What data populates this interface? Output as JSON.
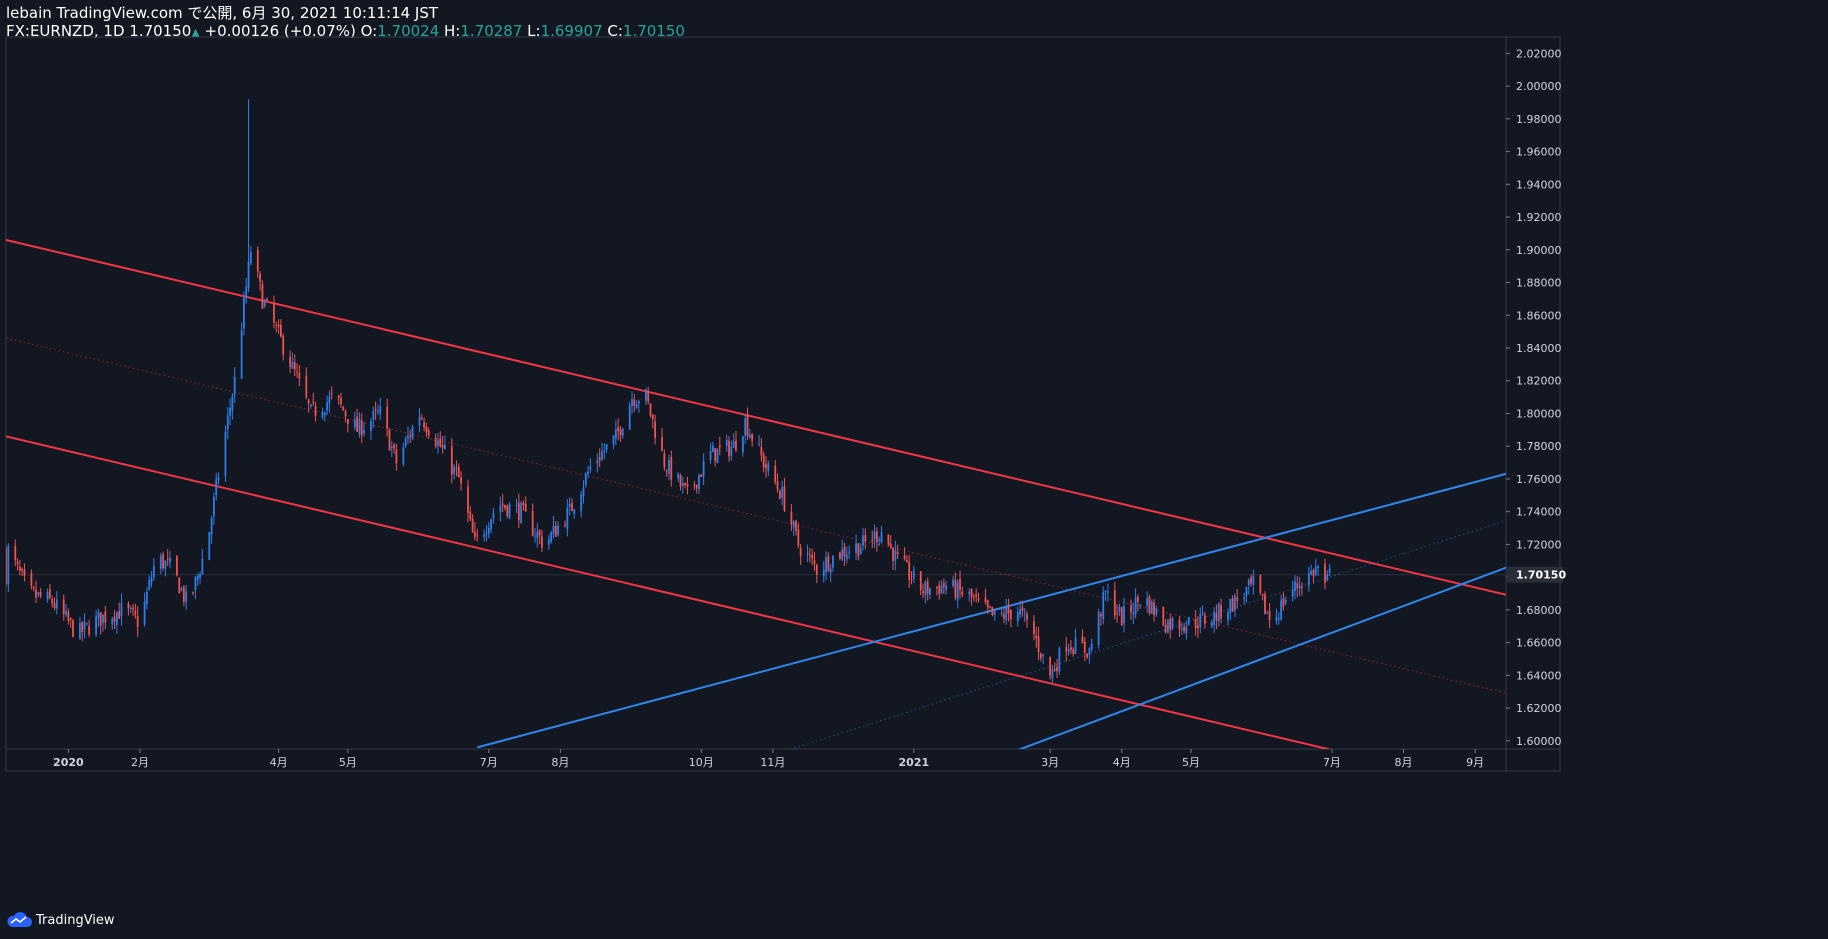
{
  "header": {
    "published": "lebain TradingView.com で公開, 6月 30, 2021 10:11:14 JST",
    "symbol_line": "FX:EURNZD, 1D 1.70150",
    "change_arrow": "▲",
    "change": " +0.00126 (+0.07%)",
    "o_label": " O:",
    "o_value": "1.70024",
    "h_label": " H:",
    "h_value": "1.70287",
    "l_label": " L:",
    "l_value": "1.69907",
    "c_label": " C:",
    "c_value": "1.70150"
  },
  "footer": {
    "brand": "TradingView",
    "logo_icon": "tradingview-cloud-icon"
  },
  "colors": {
    "background": "#131722",
    "up": "#2962ff",
    "up_candle": "#2f7ee8",
    "down": "#ef5350",
    "channel_red": "#f23645",
    "channel_blue": "#2f86eb",
    "value_green": "#26a69a"
  },
  "chart_data": {
    "type": "candlestick",
    "symbol": "FX:EURNZD",
    "interval": "1D",
    "last_price": 1.7015,
    "last_price_label": "1.70150",
    "ylim": [
      1.595,
      2.03
    ],
    "y_ticks": [
      "2.02000",
      "2.00000",
      "1.98000",
      "1.96000",
      "1.94000",
      "1.92000",
      "1.90000",
      "1.88000",
      "1.86000",
      "1.84000",
      "1.82000",
      "1.80000",
      "1.78000",
      "1.76000",
      "1.74000",
      "1.72000",
      "1.70000",
      "1.68000",
      "1.66000",
      "1.64000",
      "1.62000",
      "1.60000"
    ],
    "x_ticks": [
      "2020",
      "2月",
      "4月",
      "5月",
      "7月",
      "8月",
      "10月",
      "11月",
      "2021",
      "3月",
      "4月",
      "5月",
      "7月",
      "8月",
      "9月"
    ],
    "price_path": [
      [
        "2019-12-06",
        1.716
      ],
      [
        "2019-12-15",
        1.69
      ],
      [
        "2019-12-25",
        1.685
      ],
      [
        "2020-01-05",
        1.665
      ],
      [
        "2020-01-15",
        1.675
      ],
      [
        "2020-01-25",
        1.68
      ],
      [
        "2020-02-01",
        1.672
      ],
      [
        "2020-02-08",
        1.712
      ],
      [
        "2020-02-15",
        1.705
      ],
      [
        "2020-02-22",
        1.682
      ],
      [
        "2020-03-01",
        1.72
      ],
      [
        "2020-03-08",
        1.78
      ],
      [
        "2020-03-13",
        1.82
      ],
      [
        "2020-03-20",
        1.9
      ],
      [
        "2020-03-25",
        1.87
      ],
      [
        "2020-04-05",
        1.835
      ],
      [
        "2020-04-15",
        1.8
      ],
      [
        "2020-04-25",
        1.81
      ],
      [
        "2020-05-05",
        1.79
      ],
      [
        "2020-05-15",
        1.8
      ],
      [
        "2020-05-22",
        1.77
      ],
      [
        "2020-06-01",
        1.8
      ],
      [
        "2020-06-10",
        1.78
      ],
      [
        "2020-06-18",
        1.76
      ],
      [
        "2020-06-25",
        1.72
      ],
      [
        "2020-07-05",
        1.745
      ],
      [
        "2020-07-15",
        1.74
      ],
      [
        "2020-07-25",
        1.72
      ],
      [
        "2020-08-05",
        1.74
      ],
      [
        "2020-08-15",
        1.77
      ],
      [
        "2020-08-25",
        1.785
      ],
      [
        "2020-09-01",
        1.81
      ],
      [
        "2020-09-07",
        1.81
      ],
      [
        "2020-09-15",
        1.77
      ],
      [
        "2020-09-25",
        1.75
      ],
      [
        "2020-10-05",
        1.775
      ],
      [
        "2020-10-15",
        1.78
      ],
      [
        "2020-10-20",
        1.795
      ],
      [
        "2020-10-28",
        1.77
      ],
      [
        "2020-11-05",
        1.75
      ],
      [
        "2020-11-12",
        1.72
      ],
      [
        "2020-11-20",
        1.705
      ],
      [
        "2020-11-30",
        1.715
      ],
      [
        "2020-12-10",
        1.72
      ],
      [
        "2020-12-18",
        1.728
      ],
      [
        "2020-12-25",
        1.71
      ],
      [
        "2021-01-05",
        1.692
      ],
      [
        "2021-01-15",
        1.695
      ],
      [
        "2021-01-25",
        1.688
      ],
      [
        "2021-02-05",
        1.675
      ],
      [
        "2021-02-15",
        1.68
      ],
      [
        "2021-02-22",
        1.665
      ],
      [
        "2021-03-01",
        1.64
      ],
      [
        "2021-03-08",
        1.66
      ],
      [
        "2021-03-18",
        1.655
      ],
      [
        "2021-03-25",
        1.69
      ],
      [
        "2021-04-01",
        1.675
      ],
      [
        "2021-04-10",
        1.688
      ],
      [
        "2021-04-20",
        1.672
      ],
      [
        "2021-05-01",
        1.672
      ],
      [
        "2021-05-10",
        1.675
      ],
      [
        "2021-05-20",
        1.685
      ],
      [
        "2021-05-28",
        1.695
      ],
      [
        "2021-06-05",
        1.672
      ],
      [
        "2021-06-12",
        1.69
      ],
      [
        "2021-06-20",
        1.7
      ],
      [
        "2021-06-25",
        1.706
      ],
      [
        "2021-06-27",
        1.69
      ],
      [
        "2021-06-30",
        1.7015
      ]
    ],
    "spike_high": [
      "2020-03-19",
      1.992
    ],
    "trend_lines": [
      {
        "color": "red",
        "style": "solid",
        "from": [
          "2019-12-05",
          1.906
        ],
        "to": [
          "2021-09-30",
          1.684
        ]
      },
      {
        "color": "red",
        "style": "dotted",
        "from": [
          "2019-12-05",
          1.846
        ],
        "to": [
          "2021-09-30",
          1.624
        ]
      },
      {
        "color": "red",
        "style": "solid",
        "from": [
          "2019-12-05",
          1.786
        ],
        "to": [
          "2021-09-30",
          1.564
        ]
      },
      {
        "color": "blue",
        "style": "solid",
        "from": [
          "2020-06-26",
          1.596
        ],
        "to": [
          "2021-09-30",
          1.769
        ]
      },
      {
        "color": "blue",
        "style": "dotted",
        "from": [
          "2020-06-26",
          1.5335
        ],
        "to": [
          "2021-09-30",
          1.7415
        ]
      },
      {
        "color": "blue",
        "style": "solid",
        "from": [
          "2020-06-26",
          1.471
        ],
        "to": [
          "2021-09-30",
          1.714
        ]
      }
    ]
  }
}
